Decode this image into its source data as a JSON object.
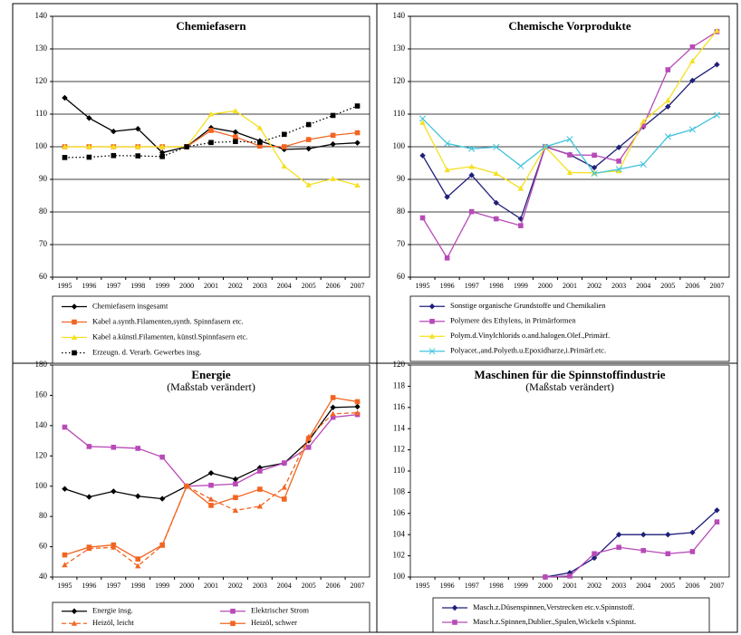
{
  "chart_data": [
    {
      "type": "line",
      "title": "Chemiefasern",
      "categories": [
        "1995",
        "1996",
        "1997",
        "1998",
        "1999",
        "2000",
        "2001",
        "2002",
        "2003",
        "2004",
        "2005",
        "2006",
        "2007"
      ],
      "ylim": [
        60,
        140
      ],
      "yticks": [
        60,
        70,
        80,
        90,
        100,
        110,
        120,
        130,
        140
      ],
      "grid": true,
      "legend": "bottom",
      "legend_columns": 1,
      "series": [
        {
          "name": "Chemiefasern insgesamt",
          "color": "#000000",
          "marker": "diamond",
          "dash": "solid",
          "values": [
            115,
            108.8,
            104.7,
            105.5,
            98.2,
            100,
            105.8,
            104.5,
            101.8,
            99.2,
            99.4,
            100.8,
            101.2
          ]
        },
        {
          "name": "Kabel a.synth.Filamenten,synth. Spinnfasern etc.",
          "color": "#f26522",
          "marker": "square",
          "dash": "solid",
          "values": [
            100,
            100,
            100,
            100,
            100,
            100,
            105,
            103,
            100.2,
            100,
            102.2,
            103.5,
            104.3
          ]
        },
        {
          "name": "Kabel a.künstl.Filamenten, künstl.Spinnfasern etc.",
          "color": "#f5e020",
          "marker": "triangle",
          "dash": "solid",
          "values": [
            100,
            100,
            100,
            100,
            100,
            100,
            110,
            111,
            105.8,
            94,
            88.3,
            90.2,
            88.2
          ]
        },
        {
          "name": "Erzeugn. d. Verarb. Gewerbes insg.",
          "color": "#000000",
          "marker": "square",
          "dash": "dotted",
          "values": [
            96.7,
            96.8,
            97.3,
            97.2,
            97,
            100,
            101.3,
            101.6,
            101.4,
            103.8,
            106.8,
            109.6,
            112.5
          ]
        }
      ]
    },
    {
      "type": "line",
      "title": "Chemische Vorprodukte",
      "categories": [
        "1995",
        "1996",
        "1997",
        "1998",
        "1999",
        "2000",
        "2001",
        "2002",
        "2003",
        "2004",
        "2005",
        "2006",
        "2007"
      ],
      "ylim": [
        60,
        140
      ],
      "yticks": [
        60,
        70,
        80,
        90,
        100,
        110,
        120,
        130,
        140
      ],
      "grid": true,
      "legend": "bottom",
      "legend_columns": 1,
      "series": [
        {
          "name": "Sonstige organische Grundstoffe und Chemikalien",
          "color": "#1f1f7a",
          "marker": "diamond",
          "dash": "solid",
          "values": [
            97.3,
            84.6,
            91.3,
            82.8,
            77.9,
            100,
            97.6,
            93.6,
            99.8,
            106.1,
            112.3,
            120.3,
            125.2
          ]
        },
        {
          "name": "Polymere des Ethylens, in Primärformen",
          "color": "#b84ab8",
          "marker": "square",
          "dash": "solid",
          "values": [
            78.2,
            65.9,
            80.1,
            77.9,
            75.8,
            100,
            97.5,
            97.4,
            95.6,
            106.5,
            123.6,
            130.6,
            135.3
          ]
        },
        {
          "name": "Polym.d.Vinylchlorids o.and.halogen.Olef.,Primärf.",
          "color": "#f5e020",
          "marker": "triangle",
          "dash": "solid",
          "values": [
            107.4,
            92.9,
            93.9,
            91.8,
            87.2,
            100,
            92.1,
            92,
            92.6,
            107.8,
            114.2,
            126.3,
            135.6
          ]
        },
        {
          "name": "Polyacet.,and.Polyeth.u.Epoxidharze,i.Primärf.etc.",
          "color": "#3fc4dc",
          "marker": "x",
          "dash": "solid",
          "values": [
            108.6,
            101,
            99.4,
            99.9,
            94.1,
            100,
            102.3,
            91.8,
            93.1,
            94.6,
            103.1,
            105.3,
            109.7
          ]
        }
      ]
    },
    {
      "type": "line",
      "title": "Energie",
      "subtitle": "(Maßstab verändert)",
      "categories": [
        "1995",
        "1996",
        "1997",
        "1998",
        "1999",
        "2000",
        "2001",
        "2002",
        "2003",
        "2004",
        "2005",
        "2006",
        "2007"
      ],
      "ylim": [
        40,
        180
      ],
      "yticks": [
        40,
        60,
        80,
        100,
        120,
        140,
        160,
        180
      ],
      "grid": false,
      "legend": "bottom",
      "legend_columns": 2,
      "series": [
        {
          "name": "Energie insg.",
          "color": "#000000",
          "marker": "diamond",
          "dash": "solid",
          "values": [
            98.2,
            92.9,
            96.6,
            93.4,
            91.7,
            100,
            108.7,
            104.6,
            112.2,
            115.2,
            130,
            152,
            152.5
          ]
        },
        {
          "name": "Elektrischer Strom",
          "color": "#b84ab8",
          "marker": "square",
          "dash": "solid",
          "values": [
            139,
            126.2,
            125.7,
            125,
            119.2,
            100,
            100.6,
            101.5,
            110,
            115.3,
            125.7,
            145.5,
            147.3
          ]
        },
        {
          "name": "Heizöl, leicht",
          "color": "#f26522",
          "marker": "triangle",
          "dash": "dashed",
          "values": [
            48,
            58.8,
            59.6,
            47.3,
            60.8,
            100,
            91.4,
            84,
            86.7,
            99.2,
            132.6,
            147.8,
            148.5
          ]
        },
        {
          "name": "Heizöl, schwer",
          "color": "#f26522",
          "marker": "square",
          "dash": "solid",
          "values": [
            54.6,
            59.7,
            61.2,
            51.9,
            61.2,
            100,
            87.3,
            92.5,
            98,
            91.5,
            131.5,
            158.5,
            155.8
          ]
        }
      ]
    },
    {
      "type": "line",
      "title": "Maschinen für die Spinnstoffindustrie",
      "subtitle": "(Maßstab verändert)",
      "categories": [
        "1995",
        "1996",
        "1997",
        "1998",
        "1999",
        "2000",
        "2001",
        "2002",
        "2003",
        "2004",
        "2005",
        "2006",
        "2007"
      ],
      "ylim": [
        100,
        120
      ],
      "yticks": [
        100,
        102,
        104,
        106,
        108,
        110,
        112,
        114,
        116,
        118,
        120
      ],
      "grid": false,
      "legend": "bottom",
      "legend_columns": 1,
      "series": [
        {
          "name": "Masch.z.Düsenspinnen,Verstrecken etc.v.Spinnstoff.",
          "color": "#1f1f7a",
          "marker": "diamond",
          "dash": "solid",
          "values": [
            null,
            null,
            null,
            null,
            null,
            100,
            100.4,
            101.8,
            104,
            104,
            104,
            104.2,
            106.3
          ]
        },
        {
          "name": "Masch.z.Spinnen,Dublier.,Spulen,Wickeln v.Spinnst.",
          "color": "#b84ab8",
          "marker": "square",
          "dash": "solid",
          "values": [
            null,
            null,
            null,
            null,
            null,
            100,
            100.1,
            102.2,
            102.8,
            102.5,
            102.2,
            102.4,
            105.2
          ]
        }
      ]
    }
  ]
}
